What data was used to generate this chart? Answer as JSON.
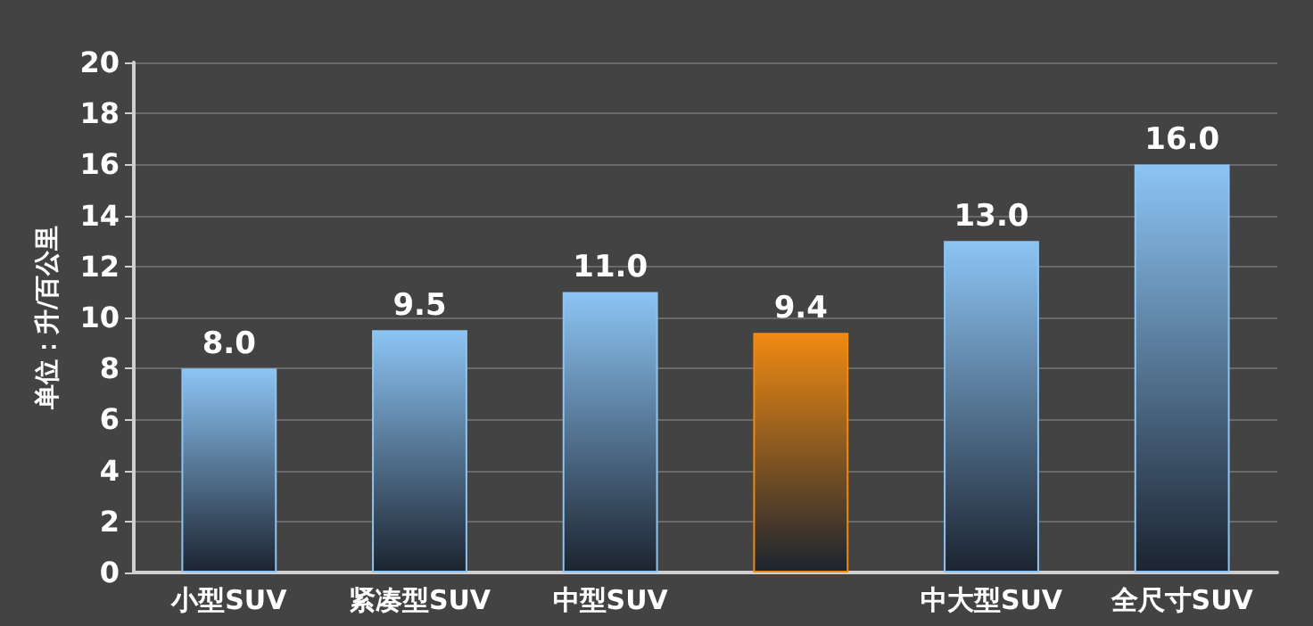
{
  "chart_data": {
    "type": "bar",
    "ylabel": "单位：升/百公里",
    "categories": [
      "小型SUV",
      "紧凑型SUV",
      "中型SUV",
      null,
      "中大型SUV",
      "全尺寸SUV"
    ],
    "values": [
      8.0,
      9.5,
      11.0,
      9.4,
      13.0,
      16.0
    ],
    "colors": [
      "#8cc4f4",
      "#8cc4f4",
      "#8cc4f4",
      "#f08a12",
      "#8cc4f4",
      "#8cc4f4"
    ],
    "ylim": [
      0,
      20
    ],
    "yticks": [
      0,
      2,
      4,
      6,
      8,
      10,
      12,
      14,
      16,
      18,
      20
    ],
    "grid": "y",
    "value_labels": [
      "8.0",
      "9.5",
      "11.0",
      "9.4",
      "13.0",
      "16.0"
    ]
  }
}
